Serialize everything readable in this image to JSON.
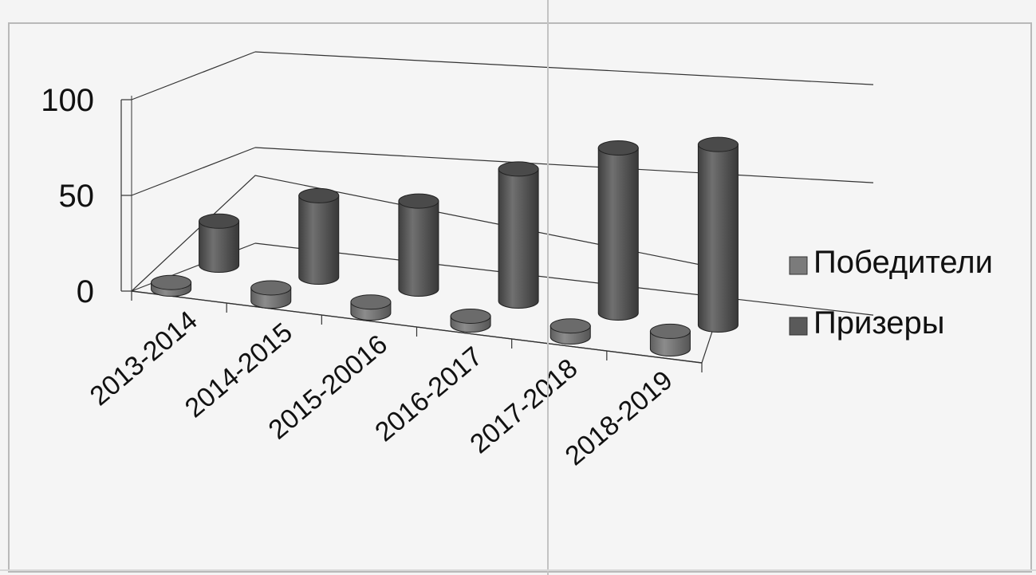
{
  "chart_data": {
    "type": "bar",
    "style": "3d-cylinder",
    "title": "",
    "xlabel": "",
    "ylabel": "",
    "ylim": [
      0,
      100
    ],
    "yticks": [
      "0",
      "50",
      "100"
    ],
    "categories": [
      "2013-2014",
      "2014-2015",
      "2015-20016",
      "2016-2017",
      "2017-2018",
      "2018-2019"
    ],
    "series": [
      {
        "name": "Победители",
        "values": [
          3,
          6,
          5,
          4,
          5,
          8
        ],
        "color": "#7b7b7b"
      },
      {
        "name": "Призеры",
        "values": [
          20,
          37,
          40,
          60,
          75,
          82
        ],
        "color": "#5a5a5a"
      }
    ],
    "legend_position": "right",
    "grid": true
  }
}
